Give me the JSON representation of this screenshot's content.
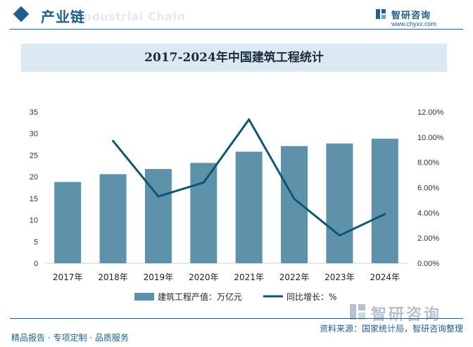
{
  "header": {
    "title": "产业链",
    "watermark": "Industrial Chain",
    "logo_name": "智研咨询",
    "logo_url": "www.chyxx.com"
  },
  "colors": {
    "bar": "#5e91aa",
    "line": "#0e5770",
    "brand": "#1f5f8b",
    "title_band": "#dce9f3"
  },
  "chart_data": {
    "type": "bar",
    "title": "2017-2024年中国建筑工程统计",
    "categories": [
      "2017年",
      "2018年",
      "2019年",
      "2020年",
      "2021年",
      "2022年",
      "2023年",
      "2024年"
    ],
    "series": [
      {
        "name": "建筑工程产值：万亿元",
        "type": "bar",
        "axis": "left",
        "values": [
          18.8,
          20.6,
          21.8,
          23.2,
          25.8,
          27.1,
          27.7,
          28.8
        ]
      },
      {
        "name": "同比增长：%",
        "type": "line",
        "axis": "right",
        "values": [
          null,
          9.7,
          5.3,
          6.4,
          11.4,
          5.1,
          2.2,
          3.9
        ]
      }
    ],
    "y_left": {
      "min": 0,
      "max": 35,
      "ticks": [
        "0",
        "5",
        "10",
        "15",
        "20",
        "25",
        "30",
        "35"
      ]
    },
    "y_right": {
      "min": 0,
      "max": 12,
      "ticks": [
        "0.00%",
        "2.00%",
        "4.00%",
        "6.00%",
        "8.00%",
        "10.00%",
        "12.00%"
      ]
    },
    "grid": false,
    "legend": "bottom"
  },
  "watermark_bottom": "智研咨询",
  "footer": {
    "left": "精品报告 · 专项定制 · 品质服务",
    "right": "资料来源：国家统计局，智研咨询整理"
  }
}
